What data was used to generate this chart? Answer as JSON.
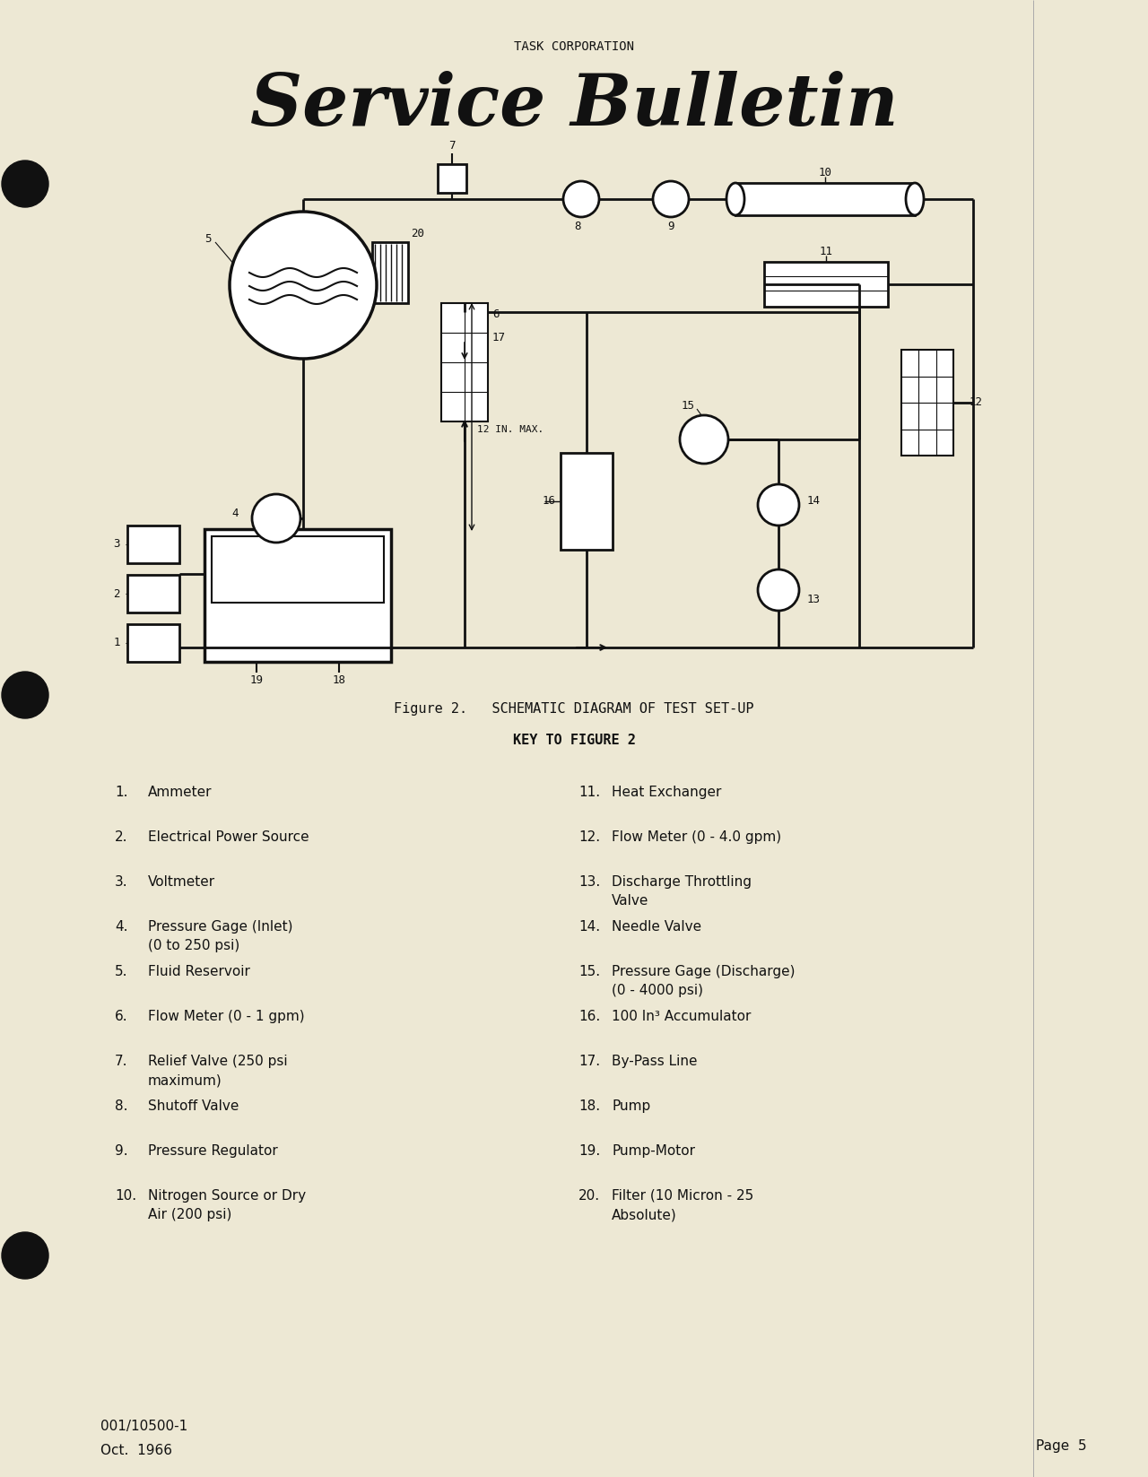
{
  "bg_color": "#ede8d4",
  "title_company": "TASK CORPORATION",
  "title_main": "Service Bulletin",
  "fig_caption": "Figure 2.   SCHEMATIC DIAGRAM OF TEST SET-UP",
  "fig_key_title": "KEY TO FIGURE 2",
  "left_items": [
    [
      "1.",
      "Ammeter"
    ],
    [
      "2.",
      "Electrical Power Source"
    ],
    [
      "3.",
      "Voltmeter"
    ],
    [
      "4.",
      "Pressure Gage (Inlet)\n(0 to 250 psi)"
    ],
    [
      "5.",
      "Fluid Reservoir"
    ],
    [
      "6.",
      "Flow Meter (0 - 1 gpm)"
    ],
    [
      "7.",
      "Relief Valve (250 psi\nmaximum)"
    ],
    [
      "8.",
      "Shutoff Valve"
    ],
    [
      "9.",
      "Pressure Regulator"
    ],
    [
      "10.",
      "Nitrogen Source or Dry\nAir (200 psi)"
    ]
  ],
  "right_items": [
    [
      "11.",
      "Heat Exchanger"
    ],
    [
      "12.",
      "Flow Meter (0 - 4.0 gpm)"
    ],
    [
      "13.",
      "Discharge Throttling\nValve"
    ],
    [
      "14.",
      "Needle Valve"
    ],
    [
      "15.",
      "Pressure Gage (Discharge)\n(0 - 4000 psi)"
    ],
    [
      "16.",
      "100 In³ Accumulator"
    ],
    [
      "17.",
      "By-Pass Line"
    ],
    [
      "18.",
      "Pump"
    ],
    [
      "19.",
      "Pump-Motor"
    ],
    [
      "20.",
      "Filter (10 Micron - 25\nAbsolute)"
    ]
  ],
  "footer_left1": "001/10500-1",
  "footer_left2": "Oct.  1966",
  "footer_right": "Page  5",
  "text_color": "#111111",
  "diagram_color": "#111111"
}
